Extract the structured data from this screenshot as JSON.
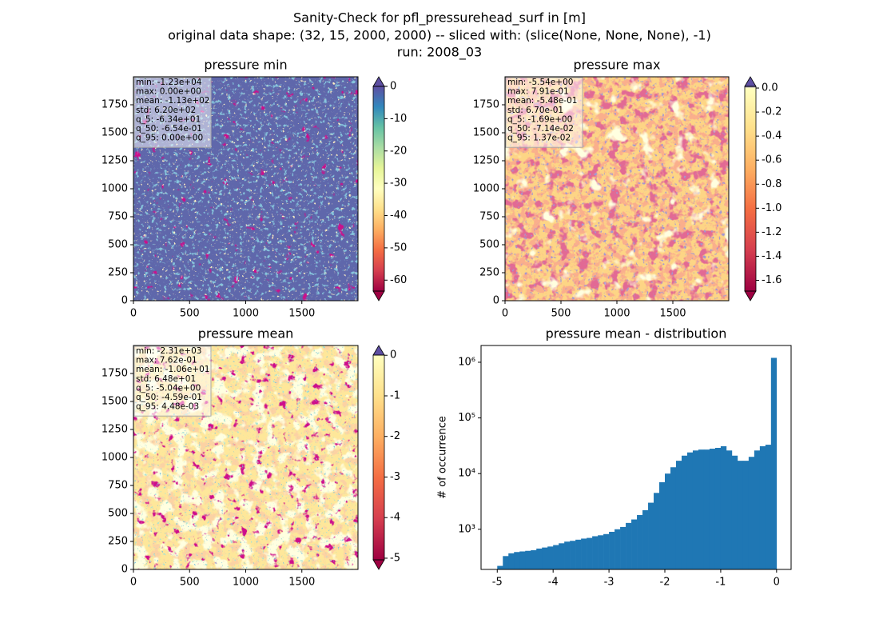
{
  "suptitle": [
    "Sanity-Check for pfl_pressurehead_surf in [m]",
    "original data shape: (32, 15, 2000, 2000) -- sliced with: (slice(None, None, None), -1)",
    "run: 2008_03"
  ],
  "chart_data": [
    {
      "type": "heatmap",
      "title": "pressure min",
      "xlim": [
        0,
        2000
      ],
      "ylim": [
        0,
        2000
      ],
      "xticks": [
        0,
        500,
        1000,
        1500
      ],
      "yticks": [
        0,
        250,
        500,
        750,
        1000,
        1250,
        1500,
        1750
      ],
      "stats": [
        "min: -1.23e+04",
        "max: 0.00e+00",
        "mean: -1.13e+02",
        "std: 6.20e+02",
        "q_5: -6.34e+01",
        "q_50: -6.54e-01",
        "q_95: 0.00e+00"
      ],
      "colorbar": {
        "clim": [
          -63.4,
          0
        ],
        "ticks": [
          0,
          -10,
          -20,
          -30,
          -40,
          -50,
          -60
        ],
        "colormap": [
          "#9e0142",
          "#d53e4f",
          "#f46d43",
          "#fdae61",
          "#fee08b",
          "#ffffbf",
          "#e6f598",
          "#abdda4",
          "#66c2a5",
          "#3288bd",
          "#5e4fa2"
        ]
      }
    },
    {
      "type": "heatmap",
      "title": "pressure max",
      "xlim": [
        0,
        2000
      ],
      "ylim": [
        0,
        2000
      ],
      "xticks": [
        0,
        500,
        1000,
        1500
      ],
      "yticks": [
        0,
        250,
        500,
        750,
        1000,
        1250,
        1500,
        1750
      ],
      "stats": [
        "min: -5.54e+00",
        "max: 7.91e-01",
        "mean: -5.48e-01",
        "std: 6.70e-01",
        "q_5: -1.69e+00",
        "q_50: -7.14e-02",
        "q_95: 1.37e-02"
      ],
      "colorbar": {
        "clim": [
          -1.69,
          0.0137
        ],
        "ticks": [
          {
            "value": 0,
            "label": "0.0"
          },
          -0.2,
          -0.4,
          -0.6,
          -0.8,
          {
            "value": -1,
            "label": "-1.0"
          },
          -1.2,
          -1.4,
          -1.6
        ],
        "colormap": [
          "#9e0142",
          "#d53e4f",
          "#f46d43",
          "#fdae61",
          "#fee08b",
          "#ffffbf",
          "#5e4fa2"
        ]
      }
    },
    {
      "type": "heatmap",
      "title": "pressure mean",
      "xlim": [
        0,
        2000
      ],
      "ylim": [
        0,
        2000
      ],
      "xticks": [
        0,
        500,
        1000,
        1500
      ],
      "yticks": [
        0,
        250,
        500,
        750,
        1000,
        1250,
        1500,
        1750
      ],
      "stats": [
        "min: -2.31e+03",
        "max: 7.62e-01",
        "mean: -1.06e+01",
        "std: 6.48e+01",
        "q_5: -5.04e+00",
        "q_50: -4.59e-01",
        "q_95: 4.48e-03"
      ],
      "colorbar": {
        "clim": [
          -5.04,
          0.00448
        ],
        "ticks": [
          0,
          -1,
          -2,
          -3,
          -4,
          -5
        ],
        "colormap": [
          "#9e0142",
          "#d53e4f",
          "#f46d43",
          "#fdae61",
          "#fee08b",
          "#ffffbf",
          "#5e4fa2"
        ]
      }
    },
    {
      "type": "histogram",
      "title": "pressure mean - distribution",
      "y_label": "# of occurrence",
      "color": "#1f77b4",
      "log_y": true,
      "xlim": [
        -5.29,
        0.26
      ],
      "xticks": [
        -5,
        -4,
        -3,
        -2,
        -1,
        0
      ],
      "ylim": [
        190,
        2000000
      ],
      "yticks": [
        {
          "value": 1000,
          "label": "10³"
        },
        {
          "value": 10000,
          "label": "10⁴"
        },
        {
          "value": 100000,
          "label": "10⁵"
        },
        {
          "value": 1000000,
          "label": "10⁶"
        }
      ],
      "bins": [
        -5,
        -4.9,
        -4.8,
        -4.7,
        -4.6,
        -4.5,
        -4.4,
        -4.3,
        -4.2,
        -4.1,
        -4,
        -3.9,
        -3.8,
        -3.7,
        -3.6,
        -3.5,
        -3.4,
        -3.3,
        -3.2,
        -3.1,
        -3,
        -2.9,
        -2.8,
        -2.7,
        -2.6,
        -2.5,
        -2.4,
        -2.3,
        -2.2,
        -2.1,
        -2,
        -1.9,
        -1.8,
        -1.7,
        -1.6,
        -1.5,
        -1.4,
        -1.3,
        -1.2,
        -1.1,
        -1,
        -0.9,
        -0.8,
        -0.7,
        -0.6,
        -0.5,
        -0.4,
        -0.3,
        -0.2,
        -0.1,
        0
      ],
      "counts": [
        220,
        330,
        370,
        390,
        400,
        410,
        420,
        450,
        470,
        490,
        520,
        560,
        600,
        620,
        650,
        680,
        700,
        750,
        780,
        820,
        900,
        1000,
        1100,
        1300,
        1500,
        1800,
        2200,
        3000,
        4500,
        7000,
        10000,
        13000,
        17000,
        21000,
        24000,
        26000,
        27000,
        27000,
        28000,
        29000,
        31000,
        26000,
        21000,
        17000,
        17000,
        20000,
        26000,
        31000,
        33000,
        1200000
      ]
    }
  ]
}
